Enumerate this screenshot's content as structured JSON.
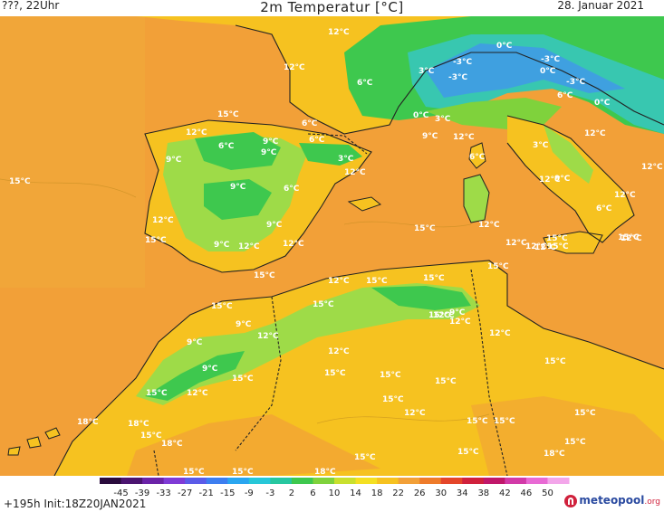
{
  "header": {
    "left": "???, 22Uhr",
    "title": "2m Temperatur [°C]",
    "date": "28. Januar 2021"
  },
  "footer": {
    "run": "+195h  Init:18Z20JAN2021",
    "brand": "meteopool",
    "brand_tld": ".org"
  },
  "colors": {
    "sea": "#f2a038",
    "land_warm": "#f6c220",
    "land_cool": "#9edb48",
    "cold_green": "#3ec84e",
    "cold_teal": "#38c7b0",
    "cold_blue": "#3fa0e0",
    "coast": "#222222"
  },
  "scale": {
    "ticks": [
      "-45",
      "-39",
      "-33",
      "-27",
      "-21",
      "-15",
      "-9",
      "-3",
      "2",
      "6",
      "10",
      "14",
      "18",
      "22",
      "26",
      "30",
      "34",
      "38",
      "42",
      "46",
      "50"
    ],
    "colors": [
      "#2a0b3d",
      "#4b1470",
      "#6b23a8",
      "#7f3bd6",
      "#5b5be8",
      "#3d7ef0",
      "#2aa6f0",
      "#27c7d8",
      "#27c7a0",
      "#3ec84e",
      "#7fd23c",
      "#c9e02e",
      "#f4e022",
      "#f6c220",
      "#f2a038",
      "#ee7b2a",
      "#e4462a",
      "#d0213c",
      "#c0186a",
      "#d23aa8",
      "#e86ad4",
      "#f3a6ea"
    ]
  },
  "labels": [
    {
      "text": "12°C"
    },
    {
      "text": "0°C"
    },
    {
      "text": "-3°C"
    },
    {
      "text": "3°C"
    },
    {
      "text": "-3°C"
    },
    {
      "text": "-3°C"
    },
    {
      "text": "0°C"
    },
    {
      "text": "6°C"
    },
    {
      "text": "0°C"
    },
    {
      "text": "-3°C"
    },
    {
      "text": "6°C"
    },
    {
      "text": "12°C"
    },
    {
      "text": "6°C"
    },
    {
      "text": "6°C"
    },
    {
      "text": "0°C"
    },
    {
      "text": "3°C"
    },
    {
      "text": "9°C"
    },
    {
      "text": "12°C"
    },
    {
      "text": "12°C"
    },
    {
      "text": "3°C"
    },
    {
      "text": "15°C"
    },
    {
      "text": "12°C"
    },
    {
      "text": "12°C"
    },
    {
      "text": "12°C"
    },
    {
      "text": "6°C"
    },
    {
      "text": "9°C"
    },
    {
      "text": "9°C"
    },
    {
      "text": "6°C"
    },
    {
      "text": "3°C"
    },
    {
      "text": "12°C"
    },
    {
      "text": "9°C"
    },
    {
      "text": "9°C"
    },
    {
      "text": "12°C"
    },
    {
      "text": "15°C"
    },
    {
      "text": "12°C"
    },
    {
      "text": "9°C"
    },
    {
      "text": "6°C"
    },
    {
      "text": "12°C"
    },
    {
      "text": "9°C"
    },
    {
      "text": "6°C"
    },
    {
      "text": "12°C"
    },
    {
      "text": "9°C"
    },
    {
      "text": "15°C"
    },
    {
      "text": "12°C"
    },
    {
      "text": "15°C"
    },
    {
      "text": "12°C"
    },
    {
      "text": "12°C"
    },
    {
      "text": "12°C"
    },
    {
      "text": "15°C"
    },
    {
      "text": "15°C"
    },
    {
      "text": "12°C"
    },
    {
      "text": "15°C"
    },
    {
      "text": "15°C"
    },
    {
      "text": "9°C"
    },
    {
      "text": "12°C"
    },
    {
      "text": "15°C"
    },
    {
      "text": "15°C"
    },
    {
      "text": "12°C"
    },
    {
      "text": "9°C"
    },
    {
      "text": "12°C"
    },
    {
      "text": "12°C"
    },
    {
      "text": "15°C"
    },
    {
      "text": "9°C"
    },
    {
      "text": "12°C"
    },
    {
      "text": "15°C"
    },
    {
      "text": "12°C"
    },
    {
      "text": "15°C"
    },
    {
      "text": "15°C"
    },
    {
      "text": "15°C"
    },
    {
      "text": "15°C"
    },
    {
      "text": "9°C"
    },
    {
      "text": "15°C"
    },
    {
      "text": "12°C"
    },
    {
      "text": "15°C"
    },
    {
      "text": "18°C"
    },
    {
      "text": "18°C"
    },
    {
      "text": "15°C"
    },
    {
      "text": "18°C"
    },
    {
      "text": "15°C"
    },
    {
      "text": "12°C"
    },
    {
      "text": "15°C"
    },
    {
      "text": "15°C"
    },
    {
      "text": "15°C"
    },
    {
      "text": "15°C"
    },
    {
      "text": "15°C"
    },
    {
      "text": "15°C"
    },
    {
      "text": "15°C"
    },
    {
      "text": "15°C"
    },
    {
      "text": "18°C"
    },
    {
      "text": "18°C"
    },
    {
      "text": "15°C"
    },
    {
      "text": "15°C"
    }
  ]
}
